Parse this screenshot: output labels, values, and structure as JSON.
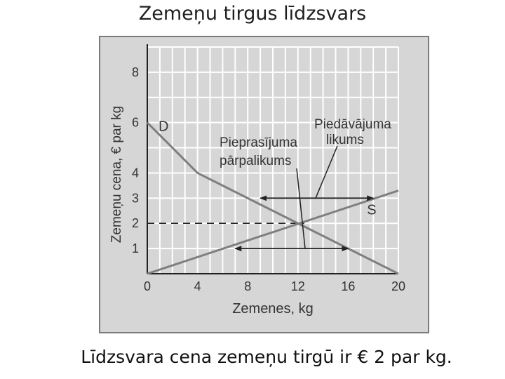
{
  "slide": {
    "title": "Zemeņu tirgus līdzsvars",
    "caption": "Līdzsvara cena zemeņu tirgū ir € 2 par kg."
  },
  "chart_data": {
    "type": "line",
    "xlabel": "Zemenes, kg",
    "ylabel": "Zemeņu cena, € par kg",
    "xlim": [
      0,
      20
    ],
    "ylim": [
      0,
      9
    ],
    "x_ticks": [
      0,
      4,
      8,
      12,
      16,
      20
    ],
    "y_ticks": [
      1,
      2,
      3,
      4,
      6,
      8
    ],
    "grid": true,
    "series": [
      {
        "name": "D",
        "points": [
          [
            0,
            6
          ],
          [
            4,
            4
          ],
          [
            20,
            0
          ]
        ]
      },
      {
        "name": "S",
        "points": [
          [
            0,
            0
          ],
          [
            20,
            3.3
          ]
        ]
      }
    ],
    "equilibrium": {
      "x": 12.5,
      "y": 2
    },
    "annotations": [
      {
        "text": [
          "Pieprasījuma",
          "pārpalikums"
        ],
        "y": 1,
        "x_from": 7,
        "x_to": 16
      },
      {
        "text": [
          "Piedāvājuma",
          "likums"
        ],
        "y": 3,
        "x_from": 9,
        "x_to": 18
      }
    ],
    "colors": {
      "curve": "#7f7f7f",
      "grid": "#ffffff",
      "plot_bg": "#d6d6d6",
      "arrow": "#222222",
      "text": "#333333"
    }
  }
}
